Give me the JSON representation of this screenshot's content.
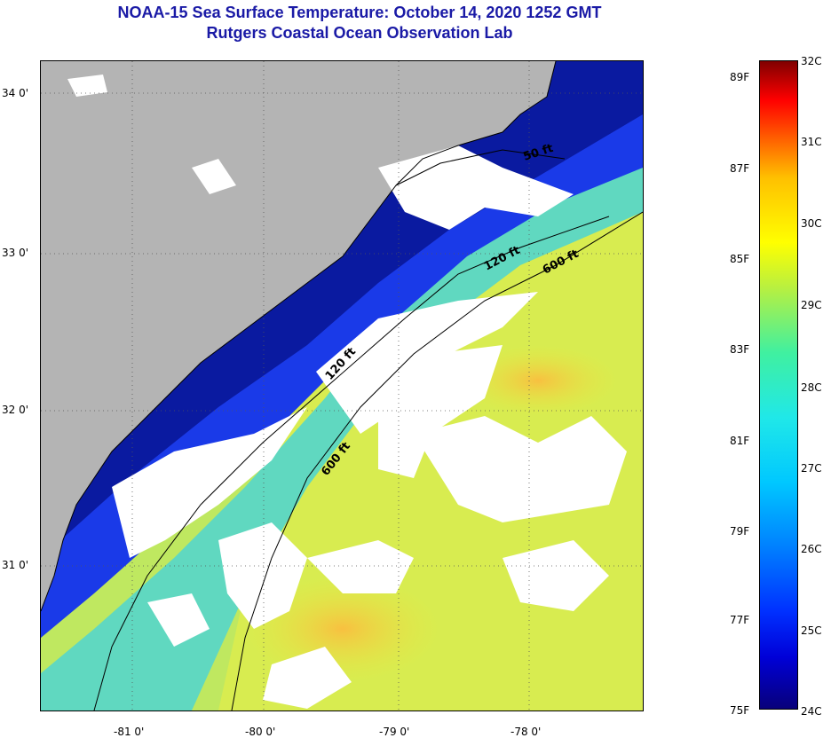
{
  "title": {
    "line1": "NOAA-15 Sea Surface Temperature:  October 14, 2020 1252 GMT",
    "line2": "Rutgers Coastal Ocean Observation Lab"
  },
  "map": {
    "lat_labels": [
      "34 0'",
      "33 0'",
      "32 0'",
      "31 0'"
    ],
    "lon_labels": [
      "-81 0'",
      "-80 0'",
      "-79 0'",
      "-78 0'"
    ],
    "isobath_labels": [
      "50 ft",
      "120 ft",
      "600 ft",
      "120 ft",
      "600 ft"
    ],
    "colors": {
      "land": "#b4b4b4",
      "cloud": "#ffffff",
      "cold": "#0a1aa0",
      "warm": "#e8e840"
    }
  },
  "colorbar": {
    "fahrenheit": [
      "89F",
      "87F",
      "85F",
      "83F",
      "81F",
      "79F",
      "77F",
      "75F"
    ],
    "celsius": [
      "32C",
      "31C",
      "30C",
      "29C",
      "28C",
      "27C",
      "26C",
      "25C",
      "24C"
    ]
  }
}
